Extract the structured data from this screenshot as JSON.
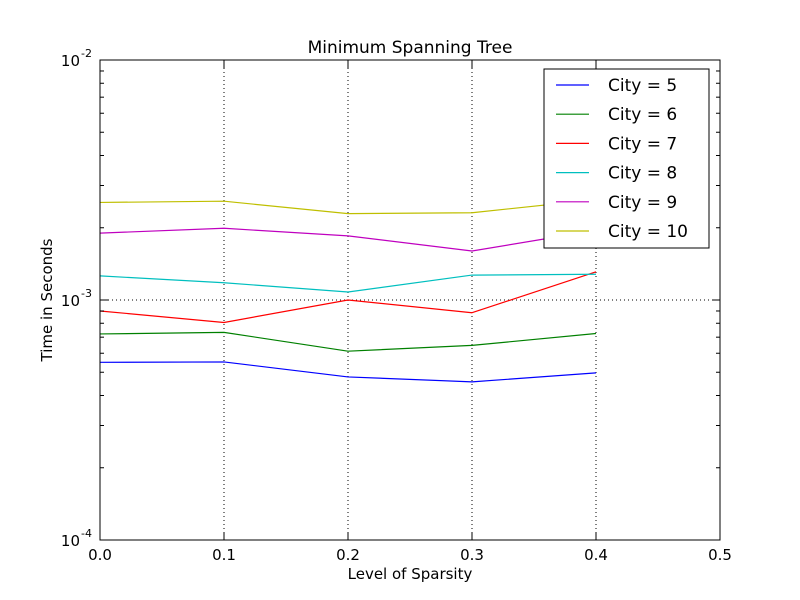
{
  "chart_data": {
    "type": "line",
    "title": "Minimum Spanning Tree",
    "xlabel": "Level of Sparsity",
    "ylabel": "Time in Seconds",
    "xlim": [
      0.0,
      0.5
    ],
    "ylim": [
      0.0001,
      0.01
    ],
    "yscale": "log",
    "grid": true,
    "legend_position": "top-right",
    "x_ticks": [
      {
        "value": 0.0,
        "label": "0.0"
      },
      {
        "value": 0.1,
        "label": "0.1"
      },
      {
        "value": 0.2,
        "label": "0.2"
      },
      {
        "value": 0.3,
        "label": "0.3"
      },
      {
        "value": 0.4,
        "label": "0.4"
      },
      {
        "value": 0.5,
        "label": "0.5"
      }
    ],
    "y_ticks": [
      {
        "value": 0.0001,
        "base": "10",
        "exp": "-4"
      },
      {
        "value": 0.001,
        "base": "10",
        "exp": "-3"
      },
      {
        "value": 0.01,
        "base": "10",
        "exp": "-2"
      }
    ],
    "x": [
      0.0,
      0.1,
      0.2,
      0.3,
      0.4
    ],
    "series": [
      {
        "name": "City = 5",
        "color": "#0000ff",
        "values": [
          0.00055,
          0.000552,
          0.000478,
          0.000456,
          0.000497
        ]
      },
      {
        "name": "City = 6",
        "color": "#008000",
        "values": [
          0.000722,
          0.000733,
          0.000612,
          0.000647,
          0.000725
        ]
      },
      {
        "name": "City = 7",
        "color": "#ff0000",
        "values": [
          0.0009,
          0.000806,
          0.001,
          0.000885,
          0.00131
        ]
      },
      {
        "name": "City = 8",
        "color": "#00bfbf",
        "values": [
          0.00126,
          0.00118,
          0.00108,
          0.00127,
          0.00128
        ]
      },
      {
        "name": "City = 9",
        "color": "#bf00bf",
        "values": [
          0.0019,
          0.00199,
          0.00185,
          0.0016,
          0.00195
        ]
      },
      {
        "name": "City = 10",
        "color": "#bfbf00",
        "values": [
          0.00255,
          0.00258,
          0.00229,
          0.00231,
          0.00262
        ]
      }
    ]
  }
}
